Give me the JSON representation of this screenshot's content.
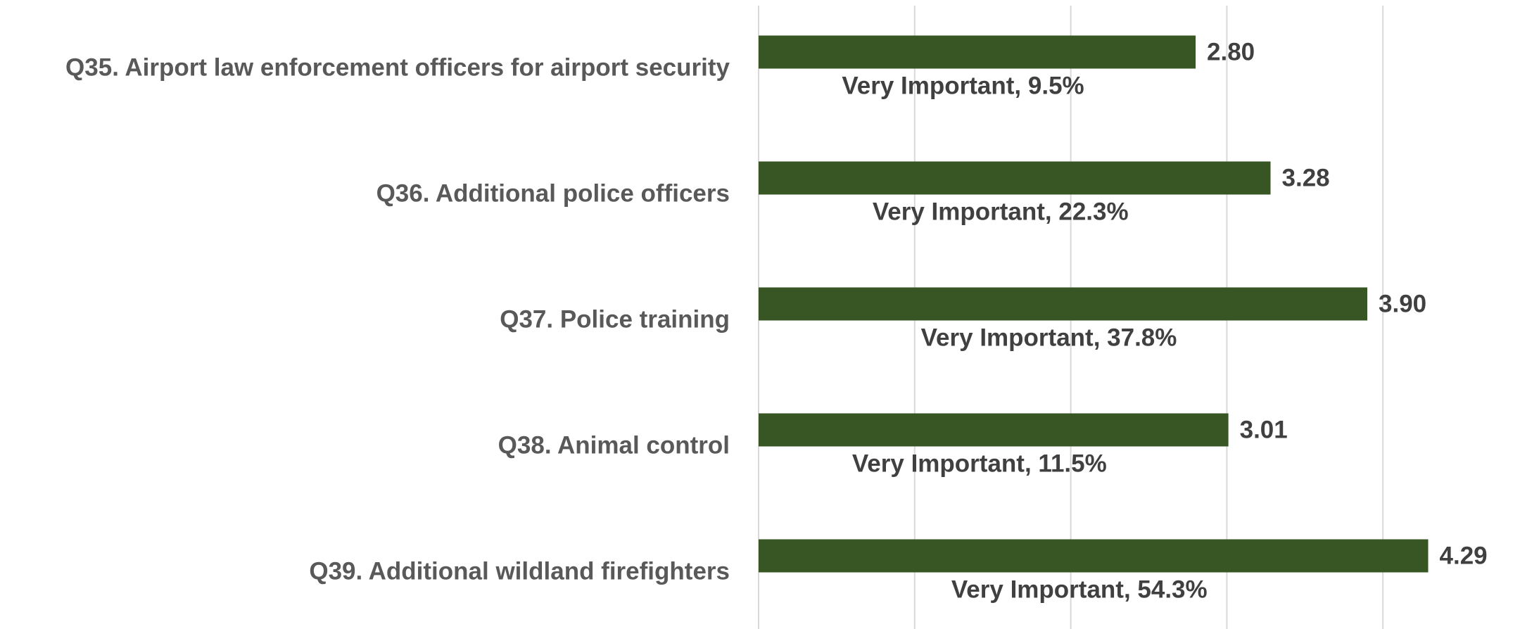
{
  "chart_data": {
    "type": "bar",
    "orientation": "horizontal",
    "categories": [
      "Q35. Airport law enforcement officers for airport security",
      "Q36. Additional police officers",
      "Q37. Police training",
      "Q38. Animal control",
      "Q39. Additional wildland firefighters"
    ],
    "values": [
      2.8,
      3.28,
      3.9,
      3.01,
      4.29
    ],
    "value_labels": [
      "2.80",
      "3.28",
      "3.90",
      "3.01",
      "4.29"
    ],
    "annotations": [
      "Very Important, 9.5%",
      "Very Important, 22.3%",
      "Very Important, 37.8%",
      "Very Important, 11.5%",
      "Very Important, 54.3%"
    ],
    "color": "#375623",
    "xlim": [
      0,
      5
    ],
    "xticks": [
      0,
      1,
      2,
      3,
      4
    ],
    "grid": true
  }
}
